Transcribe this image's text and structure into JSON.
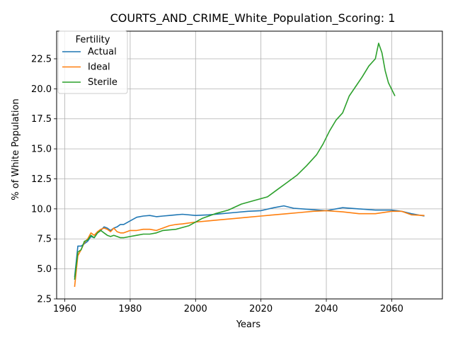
{
  "chart_data": {
    "type": "line",
    "title": "COURTS_AND_CRIME_White_Population_Scoring: 1",
    "xlabel": "Years",
    "ylabel": "% of White Population",
    "xlim": [
      1957.5,
      2075.5
    ],
    "ylim": [
      2.5,
      24.8
    ],
    "xticks": [
      1960,
      1980,
      2000,
      2020,
      2040,
      2060
    ],
    "yticks": [
      2.5,
      5.0,
      7.5,
      10.0,
      12.5,
      15.0,
      17.5,
      20.0,
      22.5
    ],
    "ytick_labels": [
      "2.5",
      "5.0",
      "7.5",
      "10.0",
      "12.5",
      "15.0",
      "17.5",
      "20.0",
      "22.5"
    ],
    "grid": true,
    "legend": {
      "title": "Fertility",
      "position": "top-left"
    },
    "series": [
      {
        "name": "Actual",
        "color": "#1f77b4",
        "x": [
          1963,
          1964,
          1965,
          1966,
          1967,
          1968,
          1969,
          1970,
          1971,
          1972,
          1973,
          1974,
          1975,
          1976,
          1977,
          1978,
          1980,
          1982,
          1984,
          1986,
          1988,
          1990,
          1992,
          1994,
          1996,
          2000,
          2004,
          2008,
          2012,
          2016,
          2020,
          2024,
          2027,
          2030,
          2035,
          2040,
          2045,
          2050,
          2055,
          2060,
          2063,
          2066,
          2070
        ],
        "y": [
          4.3,
          6.9,
          6.9,
          7.1,
          7.3,
          7.7,
          7.6,
          8.0,
          8.2,
          8.5,
          8.4,
          8.2,
          8.4,
          8.5,
          8.7,
          8.7,
          9.0,
          9.3,
          9.4,
          9.45,
          9.35,
          9.4,
          9.45,
          9.5,
          9.55,
          9.45,
          9.5,
          9.6,
          9.7,
          9.8,
          9.85,
          10.1,
          10.25,
          10.05,
          9.95,
          9.85,
          10.1,
          10.0,
          9.9,
          9.9,
          9.8,
          9.6,
          9.4
        ]
      },
      {
        "name": "Ideal",
        "color": "#ff7f0e",
        "x": [
          1963,
          1964,
          1965,
          1966,
          1967,
          1968,
          1969,
          1970,
          1971,
          1972,
          1973,
          1974,
          1975,
          1976,
          1977,
          1978,
          1980,
          1982,
          1984,
          1986,
          1988,
          1990,
          1992,
          1994,
          1996,
          2000,
          2004,
          2008,
          2012,
          2016,
          2020,
          2024,
          2028,
          2032,
          2036,
          2040,
          2045,
          2050,
          2055,
          2060,
          2063,
          2066,
          2070
        ],
        "y": [
          3.5,
          6.1,
          6.6,
          7.2,
          7.5,
          8.0,
          7.8,
          8.1,
          8.3,
          8.4,
          8.3,
          8.1,
          8.4,
          8.1,
          8.0,
          8.0,
          8.2,
          8.2,
          8.3,
          8.3,
          8.2,
          8.4,
          8.6,
          8.7,
          8.75,
          8.9,
          9.0,
          9.1,
          9.2,
          9.3,
          9.4,
          9.5,
          9.6,
          9.7,
          9.8,
          9.85,
          9.75,
          9.6,
          9.6,
          9.8,
          9.8,
          9.5,
          9.45
        ]
      },
      {
        "name": "Sterile",
        "color": "#2ca02c",
        "x": [
          1963,
          1964,
          1965,
          1966,
          1967,
          1968,
          1969,
          1970,
          1971,
          1972,
          1973,
          1974,
          1975,
          1976,
          1977,
          1978,
          1980,
          1982,
          1984,
          1986,
          1988,
          1990,
          1994,
          1998,
          2002,
          2006,
          2010,
          2014,
          2018,
          2022,
          2025,
          2028,
          2031,
          2034,
          2037,
          2039,
          2041,
          2043,
          2045,
          2047,
          2049,
          2051,
          2053,
          2055,
          2056,
          2057,
          2058,
          2059,
          2061
        ],
        "y": [
          4.1,
          6.4,
          6.6,
          7.3,
          7.4,
          7.8,
          7.6,
          8.0,
          8.2,
          8.0,
          7.8,
          7.7,
          7.8,
          7.7,
          7.6,
          7.6,
          7.7,
          7.8,
          7.9,
          7.9,
          8.0,
          8.2,
          8.3,
          8.6,
          9.2,
          9.6,
          9.9,
          10.4,
          10.7,
          11.0,
          11.6,
          12.2,
          12.8,
          13.6,
          14.5,
          15.4,
          16.5,
          17.4,
          18.0,
          19.4,
          20.2,
          21.0,
          21.9,
          22.5,
          23.8,
          23.0,
          21.5,
          20.5,
          19.4
        ]
      }
    ]
  }
}
